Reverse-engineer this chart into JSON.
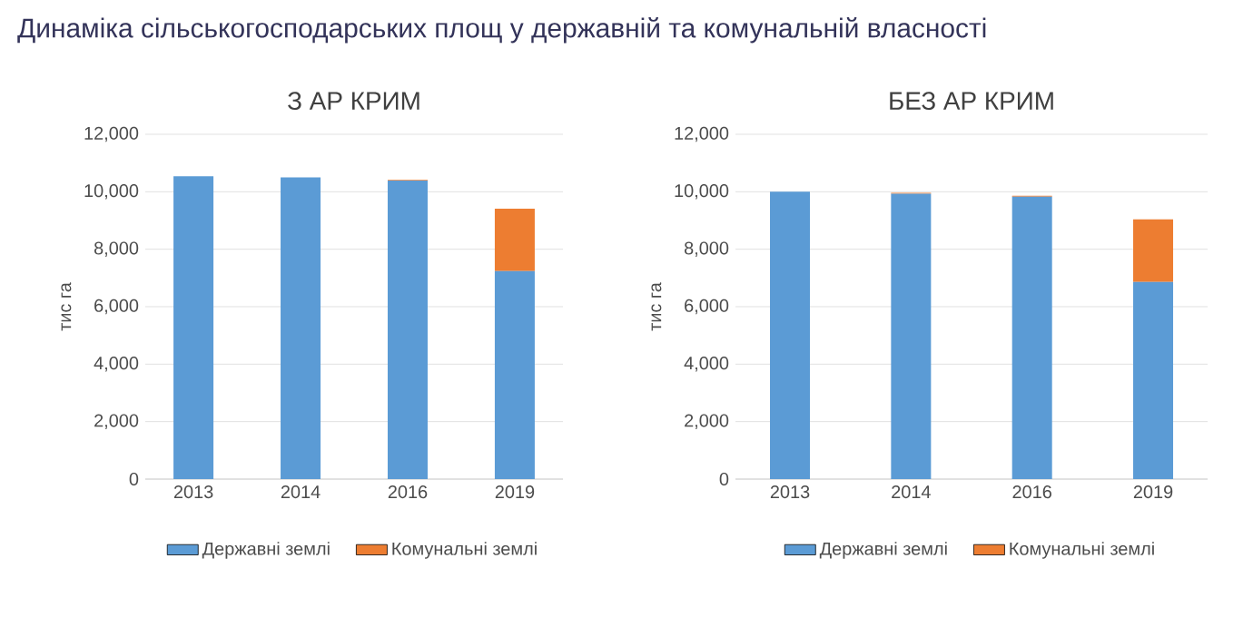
{
  "chart_data": [
    {
      "type": "bar",
      "title": "З АР КРИМ",
      "annotations": [
        "Динаміка сільськогосподарських площ у державній та комунальній власності"
      ],
      "ylabel": "тис га",
      "categories": [
        "2013",
        "2014",
        "2016",
        "2019"
      ],
      "stacked": true,
      "ylim": [
        0,
        12000
      ],
      "yticks": [
        0,
        {
          "value": 2000,
          "label": "2,000"
        },
        {
          "value": 4000,
          "label": "4,000"
        },
        {
          "value": 6000,
          "label": "6,000"
        },
        {
          "value": 8000,
          "label": "8,000"
        },
        {
          "value": 10000,
          "label": "10,000"
        },
        {
          "value": 12000,
          "label": "12,000"
        }
      ],
      "grid": "y",
      "legend": "bottom",
      "series": [
        {
          "name": "Державні землі",
          "color": "#5b9bd5",
          "values": [
            10540,
            10500,
            10390,
            7240
          ]
        },
        {
          "name": "Комунальні землі",
          "color": "#ed7d31",
          "values": [
            0,
            0,
            20,
            2170
          ]
        }
      ]
    },
    {
      "type": "bar",
      "title": "БЕЗ АР КРИМ",
      "ylabel": "тис га",
      "categories": [
        "2013",
        "2014",
        "2016",
        "2019"
      ],
      "stacked": true,
      "ylim": [
        0,
        12000
      ],
      "yticks": [
        0,
        {
          "value": 2000,
          "label": "2,000"
        },
        {
          "value": 4000,
          "label": "4,000"
        },
        {
          "value": 6000,
          "label": "6,000"
        },
        {
          "value": 8000,
          "label": "8,000"
        },
        {
          "value": 10000,
          "label": "10,000"
        },
        {
          "value": 12000,
          "label": "12,000"
        }
      ],
      "grid": "y",
      "legend": "bottom",
      "series": [
        {
          "name": "Державні землі",
          "color": "#5b9bd5",
          "values": [
            10000,
            9930,
            9830,
            6860
          ]
        },
        {
          "name": "Комунальні землі",
          "color": "#ed7d31",
          "values": [
            0,
            30,
            30,
            2180
          ]
        }
      ]
    }
  ]
}
